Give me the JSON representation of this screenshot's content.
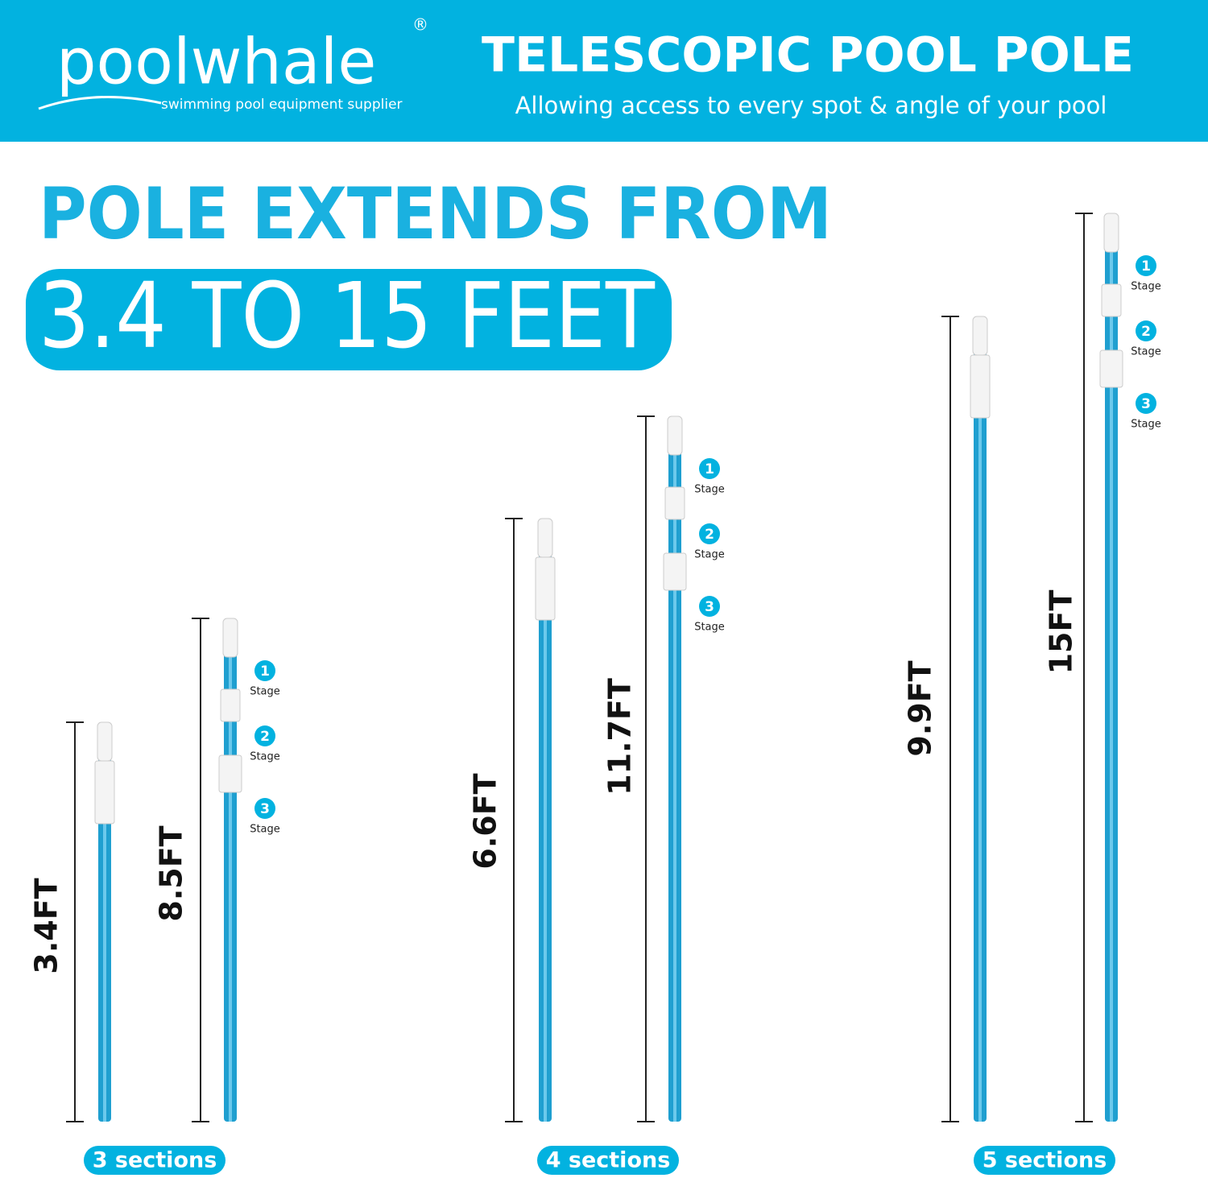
{
  "header": {
    "brand": "poolwhale",
    "registered": "®",
    "tagline": "swimming pool equipment supplier",
    "title": "TELESCOPIC POOL POLE",
    "subtitle": "Allowing access to every spot & angle of your pool"
  },
  "headline": {
    "line1": "POLE EXTENDS FROM",
    "line2": "3.4 TO 15 FEET"
  },
  "groups": [
    {
      "label": "3 sections",
      "poles": [
        {
          "length": "3.4FT"
        },
        {
          "length": "8.5FT",
          "stages": [
            {
              "number": "1",
              "label": "Stage"
            },
            {
              "number": "2",
              "label": "Stage"
            },
            {
              "number": "3",
              "label": "Stage"
            }
          ]
        }
      ]
    },
    {
      "label": "4 sections",
      "poles": [
        {
          "length": "6.6FT"
        },
        {
          "length": "11.7FT",
          "stages": [
            {
              "number": "1",
              "label": "Stage"
            },
            {
              "number": "2",
              "label": "Stage"
            },
            {
              "number": "3",
              "label": "Stage"
            }
          ]
        }
      ]
    },
    {
      "label": "5 sections",
      "poles": [
        {
          "length": "9.9FT"
        },
        {
          "length": "15FT",
          "stages": [
            {
              "number": "1",
              "label": "Stage"
            },
            {
              "number": "2",
              "label": "Stage"
            },
            {
              "number": "3",
              "label": "Stage"
            }
          ]
        }
      ]
    }
  ]
}
